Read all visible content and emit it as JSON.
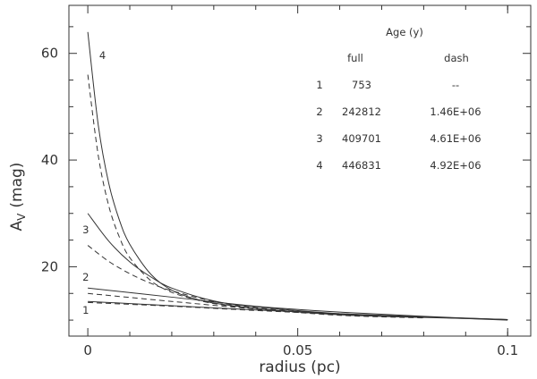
{
  "chart_data": {
    "type": "line",
    "xlabel": "radius (pc)",
    "ylabel_main": "A",
    "ylabel_sub": "V",
    "ylabel_unit": "(mag)",
    "xlim": [
      -0.0045,
      0.1055
    ],
    "ylim": [
      7,
      69
    ],
    "x_ticks": [
      0,
      0.05,
      0.1
    ],
    "x_tick_labels": [
      "0",
      "0.05",
      "0.1"
    ],
    "y_ticks": [
      20,
      40,
      60
    ],
    "y_tick_labels": [
      "20",
      "40",
      "60"
    ],
    "series": [
      {
        "name": "1",
        "style": "solid",
        "x": [
          0,
          0.02,
          0.04,
          0.06,
          0.08,
          0.1
        ],
        "y": [
          13.5,
          12.7,
          11.9,
          11.2,
          10.6,
          10.0
        ]
      },
      {
        "name": "1",
        "style": "dashed",
        "x": [
          0,
          0.02,
          0.04,
          0.06,
          0.08
        ],
        "y": [
          13.3,
          12.6,
          11.8,
          11.1,
          10.5
        ]
      },
      {
        "name": "2",
        "style": "solid",
        "x": [
          0,
          0.02,
          0.04,
          0.06,
          0.08,
          0.1
        ],
        "y": [
          16.0,
          14.3,
          12.6,
          11.5,
          10.7,
          10.1
        ]
      },
      {
        "name": "2",
        "style": "dashed",
        "x": [
          0,
          0.02,
          0.04,
          0.06,
          0.08
        ],
        "y": [
          15.0,
          13.5,
          12.1,
          11.2,
          10.5
        ]
      },
      {
        "name": "3",
        "style": "solid",
        "x": [
          0,
          0.005,
          0.01,
          0.015,
          0.02,
          0.03,
          0.04,
          0.06,
          0.08,
          0.1
        ],
        "y": [
          30.0,
          24.8,
          20.9,
          18.1,
          16.0,
          13.6,
          12.5,
          11.2,
          10.6,
          10.1
        ]
      },
      {
        "name": "3",
        "style": "dashed",
        "x": [
          0,
          0.005,
          0.01,
          0.015,
          0.02,
          0.03,
          0.04,
          0.06,
          0.08
        ],
        "y": [
          24.0,
          21.0,
          18.7,
          16.9,
          15.5,
          13.5,
          12.3,
          11.1,
          10.5
        ]
      },
      {
        "name": "4",
        "style": "solid",
        "x": [
          0,
          0.0025,
          0.005,
          0.0075,
          0.01,
          0.015,
          0.02,
          0.025,
          0.03,
          0.04,
          0.06,
          0.08,
          0.1
        ],
        "y": [
          64.0,
          46.5,
          35.6,
          28.8,
          24.2,
          18.6,
          15.6,
          14.1,
          13.2,
          12.2,
          11.0,
          10.5,
          10.1
        ]
      },
      {
        "name": "4",
        "style": "dashed",
        "x": [
          0,
          0.0025,
          0.005,
          0.0075,
          0.01,
          0.015,
          0.02,
          0.025,
          0.03,
          0.04,
          0.06,
          0.08
        ],
        "y": [
          56.0,
          40.8,
          31.4,
          25.6,
          21.7,
          17.4,
          15.2,
          14.0,
          13.1,
          12.1,
          10.9,
          10.4
        ]
      }
    ],
    "curve_labels": [
      {
        "text": "4",
        "x": 0.0035,
        "y": 59.6
      },
      {
        "text": "3",
        "x": -0.0005,
        "y": 26.9
      },
      {
        "text": "2",
        "x": -0.0005,
        "y": 18.1
      },
      {
        "text": "1",
        "x": -0.0005,
        "y": 11.9
      }
    ],
    "table": {
      "title": "Age (y)",
      "col_full": "full",
      "col_dash": "dash",
      "rows": [
        {
          "id": "1",
          "full": "753",
          "dash": "--"
        },
        {
          "id": "2",
          "full": "242812",
          "dash": "1.46E+06"
        },
        {
          "id": "3",
          "full": "409701",
          "dash": "4.61E+06"
        },
        {
          "id": "4",
          "full": "446831",
          "dash": "4.92E+06"
        }
      ]
    }
  }
}
